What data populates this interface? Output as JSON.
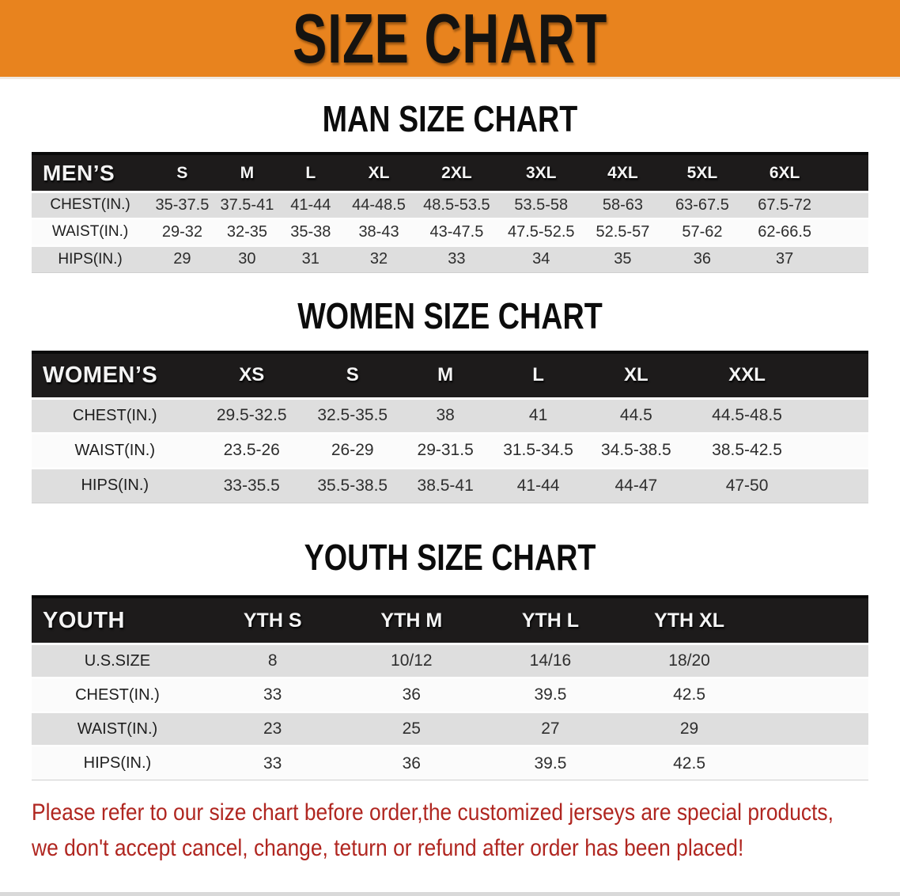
{
  "banner": {
    "title": "SIZE CHART",
    "bg_color": "#e8831e",
    "text_color": "#151310"
  },
  "sections": [
    {
      "id": "men",
      "heading": "MAN SIZE CHART",
      "table": {
        "header_label": "MEN’S",
        "columns": [
          "S",
          "M",
          "L",
          "XL",
          "2XL",
          "3XL",
          "4XL",
          "5XL",
          "6XL"
        ],
        "rows": [
          {
            "label": "CHEST(IN.)",
            "values": [
              "35-37.5",
              "37.5-41",
              "41-44",
              "44-48.5",
              "48.5-53.5",
              "53.5-58",
              "58-63",
              "63-67.5",
              "67.5-72"
            ]
          },
          {
            "label": "WAIST(IN.)",
            "values": [
              "29-32",
              "32-35",
              "35-38",
              "38-43",
              "43-47.5",
              "47.5-52.5",
              "52.5-57",
              "57-62",
              "62-66.5"
            ]
          },
          {
            "label": "HIPS(IN.)",
            "values": [
              "29",
              "30",
              "31",
              "32",
              "33",
              "34",
              "35",
              "36",
              "37"
            ]
          }
        ]
      }
    },
    {
      "id": "women",
      "heading": "WOMEN SIZE CHART",
      "table": {
        "header_label": "WOMEN’S",
        "columns": [
          "XS",
          "S",
          "M",
          "L",
          "XL",
          "XXL"
        ],
        "rows": [
          {
            "label": "CHEST(IN.)",
            "values": [
              "29.5-32.5",
              "32.5-35.5",
              "38",
              "41",
              "44.5",
              "44.5-48.5"
            ]
          },
          {
            "label": "WAIST(IN.)",
            "values": [
              "23.5-26",
              "26-29",
              "29-31.5",
              "31.5-34.5",
              "34.5-38.5",
              "38.5-42.5"
            ]
          },
          {
            "label": "HIPS(IN.)",
            "values": [
              "33-35.5",
              "35.5-38.5",
              "38.5-41",
              "41-44",
              "44-47",
              "47-50"
            ]
          }
        ]
      }
    },
    {
      "id": "youth",
      "heading": "YOUTH SIZE CHART",
      "table": {
        "header_label": "YOUTH",
        "columns": [
          "YTH S",
          "YTH M",
          "YTH L",
          "YTH XL"
        ],
        "rows": [
          {
            "label": "U.S.SIZE",
            "values": [
              "8",
              "10/12",
              "14/16",
              "18/20"
            ]
          },
          {
            "label": "CHEST(IN.)",
            "values": [
              "33",
              "36",
              "39.5",
              "42.5"
            ]
          },
          {
            "label": "WAIST(IN.)",
            "values": [
              "23",
              "25",
              "27",
              "29"
            ]
          },
          {
            "label": "HIPS(IN.)",
            "values": [
              "33",
              "36",
              "39.5",
              "42.5"
            ]
          }
        ]
      }
    }
  ],
  "footnote": {
    "line1": "Please refer to our size chart before order,the customized jerseys are special products,",
    "line2": "we don't accept cancel, change, teturn or refund after order has been placed!",
    "text_color": "#b02620"
  }
}
